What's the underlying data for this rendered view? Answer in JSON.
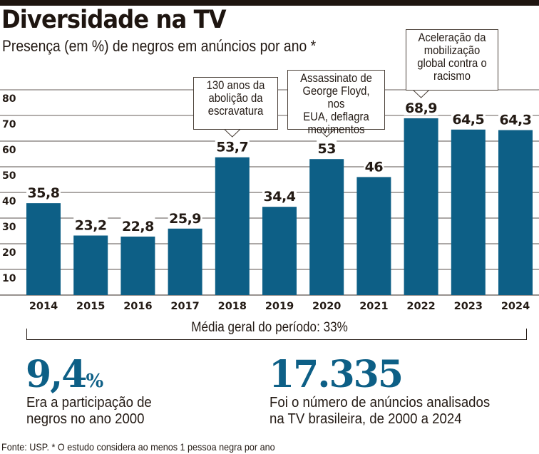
{
  "header": {
    "title": "Diversidade na TV",
    "subtitle": "Presença (em %) de negros em anúncios por ano *"
  },
  "colors": {
    "bar": "#0d5f86",
    "gridline": "#5a524c",
    "gridline_top": "#9a9490",
    "text": "#231a14",
    "accent_stat": "#0d5f86"
  },
  "chart_data": {
    "type": "bar",
    "title": "Diversidade na TV",
    "subtitle": "Presença (em %) de negros em anúncios por ano *",
    "xlabel": "",
    "ylabel": "",
    "categories": [
      "2014",
      "2015",
      "2016",
      "2017",
      "2018",
      "2019",
      "2020",
      "2021",
      "2022",
      "2023",
      "2024"
    ],
    "values": [
      35.8,
      23.2,
      22.8,
      25.9,
      53.7,
      34.4,
      53,
      46,
      68.9,
      64.5,
      64.3
    ],
    "value_labels": [
      "35,8",
      "23,2",
      "22,8",
      "25,9",
      "53,7",
      "34,4",
      "53",
      "46",
      "68,9",
      "64,5",
      "64,3"
    ],
    "ylim": [
      0,
      80
    ],
    "yticks": [
      10,
      20,
      30,
      40,
      50,
      60,
      70,
      80
    ],
    "ytick_labels": [
      "10",
      "20",
      "30",
      "40",
      "50",
      "60",
      "70",
      "80"
    ],
    "grid": true,
    "legend": "none",
    "annotations": [
      {
        "category": "2018",
        "lines": [
          "130 anos da",
          "abolição da",
          "escravatura"
        ]
      },
      {
        "category": "2020",
        "lines": [
          "Assassinato de",
          "George Floyd, nos",
          "EUA, deflagra",
          "movimentos"
        ]
      },
      {
        "category": "2022",
        "lines": [
          "Aceleração da",
          "mobilização",
          "global contra o",
          "racismo"
        ]
      }
    ],
    "average_label": "Média geral do período: 33%"
  },
  "summary": {
    "average_label": "Média geral do período: 33%",
    "stat1": {
      "value": "9,4",
      "unit": "%",
      "line1": "Era a participação de",
      "line2": "negros no ano 2000"
    },
    "stat2": {
      "value": "17.335",
      "line1": "Foi o número de anúncios analisados",
      "line2": "na TV brasileira, de 2000 a 2024"
    }
  },
  "footer": {
    "source": "Fonte: USP. * O estudo considera ao menos 1 pessoa negra por ano"
  }
}
